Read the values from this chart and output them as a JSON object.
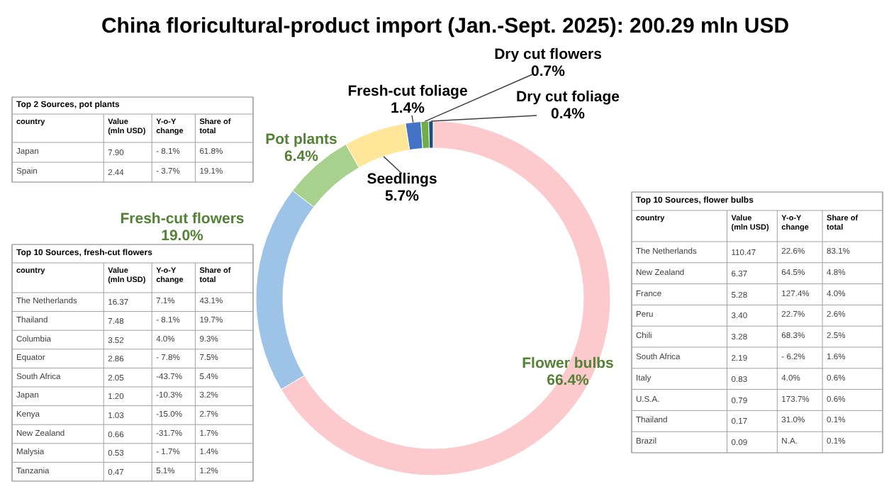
{
  "chart_data": [
    {
      "type": "donut",
      "title": "China floricultural-product import (Jan.-Sept. 2025): 200.29 mln USD",
      "categories": [
        "Flower bulbs",
        "Fresh-cut flowers",
        "Pot plants",
        "Seedlings",
        "Fresh-cut foliage",
        "Dry cut flowers",
        "Dry cut foliage"
      ],
      "values": [
        66.4,
        19.0,
        6.4,
        5.7,
        1.4,
        0.7,
        0.4
      ],
      "colors": [
        "#fcc9cc",
        "#9dc3e6",
        "#a9d18e",
        "#ffe699",
        "#4472c4",
        "#70ad47",
        "#1f4e79"
      ],
      "value_labels": [
        "66.4%",
        "19.0%",
        "6.4%",
        "5.7%",
        "1.4%",
        "0.7%",
        "0.4%"
      ]
    },
    {
      "type": "other",
      "title": "Top 2 Sources, pot plants",
      "categories": [
        "country",
        "Value\n(mln USD)",
        "Y-o-Y\nchange",
        "Share of\ntotal"
      ],
      "annotations": [
        "Japan",
        "7.90",
        "- 8.1%",
        "61.8%",
        "Spain",
        "2.44",
        "- 3.7%",
        "19.1%"
      ]
    },
    {
      "type": "other",
      "title": "Top 10 Sources, fresh-cut flowers",
      "categories": [
        "country",
        "Value\n(mln USD)",
        "Y-o-Y\nchange",
        "Share of\ntotal"
      ],
      "annotations": [
        "The Netherlands",
        "16.37",
        "7.1%",
        "43.1%",
        "Thailand",
        "7.48",
        "- 8.1%",
        "19.7%",
        "Columbia",
        "3.52",
        "4.0%",
        "9.3%",
        "Equator",
        "2.86",
        "- 7.8%",
        "7.5%",
        "South Africa",
        "2.05",
        "-43.7%",
        "5.4%",
        "Japan",
        "1.20",
        "-10.3%",
        "3.2%",
        "Kenya",
        "1.03",
        "-15.0%",
        "2.7%",
        "New Zealand",
        "0.66",
        "-31.7%",
        "1.7%",
        "Malysia",
        "0.53",
        "- 1.7%",
        "1.4%",
        "Tanzania",
        "0.47",
        "5.1%",
        "1.2%"
      ]
    },
    {
      "type": "other",
      "title": "Top 10 Sources, flower bulbs",
      "categories": [
        "country",
        "Value\n(mln USD)",
        "Y-o-Y\nchange",
        "Share of\ntotal"
      ],
      "annotations": [
        "The Netherlands",
        "110.47",
        "22.6%",
        "83.1%",
        "New Zealand",
        "6.37",
        "64.5%",
        "4.8%",
        "France",
        "5.28",
        "127.4%",
        "4.0%",
        "Peru",
        "3.40",
        "22.7%",
        "2.6%",
        "Chili",
        "3.28",
        "68.3%",
        "2.5%",
        "South Africa",
        "2.19",
        "- 6.2%",
        "1.6%",
        "Italy",
        "0.83",
        "4.0%",
        "0.6%",
        "U.S.A.",
        "0.79",
        "173.7%",
        "0.6%",
        "Thailand",
        "0.17",
        "31.0%",
        "0.1%",
        "Brazil",
        "0.09",
        "N.A.",
        "0.1%"
      ]
    }
  ]
}
